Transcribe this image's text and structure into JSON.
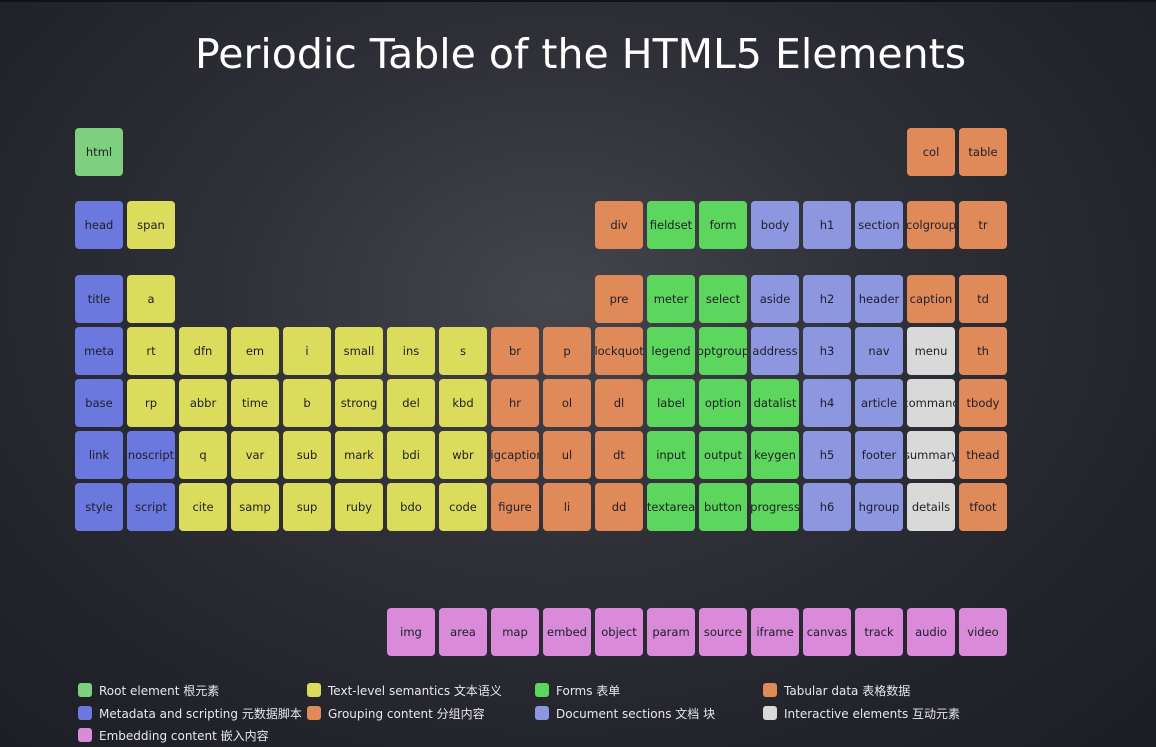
{
  "title": "Periodic Table of the HTML5 Elements",
  "colors": {
    "root": "#7ed07e",
    "meta": "#6b78dd",
    "text": "#dcdc5c",
    "group": "#e08a5a",
    "form": "#5cd65c",
    "section": "#8c97e0",
    "table": "#e08a5a",
    "interactive": "#d9d9d9",
    "embed": "#d98ad9"
  },
  "elements": [
    {
      "label": "html",
      "cat": "root"
    },
    {
      "label": "col",
      "cat": "table"
    },
    {
      "label": "table",
      "cat": "table"
    },
    {
      "label": "head",
      "cat": "meta"
    },
    {
      "label": "span",
      "cat": "text"
    },
    {
      "label": "div",
      "cat": "group"
    },
    {
      "label": "fieldset",
      "cat": "form"
    },
    {
      "label": "form",
      "cat": "form"
    },
    {
      "label": "body",
      "cat": "section"
    },
    {
      "label": "h1",
      "cat": "section"
    },
    {
      "label": "section",
      "cat": "section"
    },
    {
      "label": "colgroup",
      "cat": "table"
    },
    {
      "label": "tr",
      "cat": "table"
    },
    {
      "label": "title",
      "cat": "meta"
    },
    {
      "label": "a",
      "cat": "text"
    },
    {
      "label": "pre",
      "cat": "group"
    },
    {
      "label": "meter",
      "cat": "form"
    },
    {
      "label": "select",
      "cat": "form"
    },
    {
      "label": "aside",
      "cat": "section"
    },
    {
      "label": "h2",
      "cat": "section"
    },
    {
      "label": "header",
      "cat": "section"
    },
    {
      "label": "caption",
      "cat": "table"
    },
    {
      "label": "td",
      "cat": "table"
    },
    {
      "label": "meta",
      "cat": "meta"
    },
    {
      "label": "rt",
      "cat": "text"
    },
    {
      "label": "dfn",
      "cat": "text"
    },
    {
      "label": "em",
      "cat": "text"
    },
    {
      "label": "i",
      "cat": "text"
    },
    {
      "label": "small",
      "cat": "text"
    },
    {
      "label": "ins",
      "cat": "text"
    },
    {
      "label": "s",
      "cat": "text"
    },
    {
      "label": "br",
      "cat": "group"
    },
    {
      "label": "p",
      "cat": "group"
    },
    {
      "label": "blockquote",
      "cat": "group"
    },
    {
      "label": "legend",
      "cat": "form"
    },
    {
      "label": "optgroup",
      "cat": "form"
    },
    {
      "label": "address",
      "cat": "section"
    },
    {
      "label": "h3",
      "cat": "section"
    },
    {
      "label": "nav",
      "cat": "section"
    },
    {
      "label": "menu",
      "cat": "interactive"
    },
    {
      "label": "th",
      "cat": "table"
    },
    {
      "label": "base",
      "cat": "meta"
    },
    {
      "label": "rp",
      "cat": "text"
    },
    {
      "label": "abbr",
      "cat": "text"
    },
    {
      "label": "time",
      "cat": "text"
    },
    {
      "label": "b",
      "cat": "text"
    },
    {
      "label": "strong",
      "cat": "text"
    },
    {
      "label": "del",
      "cat": "text"
    },
    {
      "label": "kbd",
      "cat": "text"
    },
    {
      "label": "hr",
      "cat": "group"
    },
    {
      "label": "ol",
      "cat": "group"
    },
    {
      "label": "dl",
      "cat": "group"
    },
    {
      "label": "label",
      "cat": "form"
    },
    {
      "label": "option",
      "cat": "form"
    },
    {
      "label": "datalist",
      "cat": "form"
    },
    {
      "label": "h4",
      "cat": "section"
    },
    {
      "label": "article",
      "cat": "section"
    },
    {
      "label": "command",
      "cat": "interactive"
    },
    {
      "label": "tbody",
      "cat": "table"
    },
    {
      "label": "link",
      "cat": "meta"
    },
    {
      "label": "noscript",
      "cat": "meta"
    },
    {
      "label": "q",
      "cat": "text"
    },
    {
      "label": "var",
      "cat": "text"
    },
    {
      "label": "sub",
      "cat": "text"
    },
    {
      "label": "mark",
      "cat": "text"
    },
    {
      "label": "bdi",
      "cat": "text"
    },
    {
      "label": "wbr",
      "cat": "text"
    },
    {
      "label": "figcaption",
      "cat": "group"
    },
    {
      "label": "ul",
      "cat": "group"
    },
    {
      "label": "dt",
      "cat": "group"
    },
    {
      "label": "input",
      "cat": "form"
    },
    {
      "label": "output",
      "cat": "form"
    },
    {
      "label": "keygen",
      "cat": "form"
    },
    {
      "label": "h5",
      "cat": "section"
    },
    {
      "label": "footer",
      "cat": "section"
    },
    {
      "label": "summary",
      "cat": "interactive"
    },
    {
      "label": "thead",
      "cat": "table"
    },
    {
      "label": "style",
      "cat": "meta"
    },
    {
      "label": "script",
      "cat": "meta"
    },
    {
      "label": "cite",
      "cat": "text"
    },
    {
      "label": "samp",
      "cat": "text"
    },
    {
      "label": "sup",
      "cat": "text"
    },
    {
      "label": "ruby",
      "cat": "text"
    },
    {
      "label": "bdo",
      "cat": "text"
    },
    {
      "label": "code",
      "cat": "text"
    },
    {
      "label": "figure",
      "cat": "group"
    },
    {
      "label": "li",
      "cat": "group"
    },
    {
      "label": "dd",
      "cat": "group"
    },
    {
      "label": "textarea",
      "cat": "form"
    },
    {
      "label": "button",
      "cat": "form"
    },
    {
      "label": "progress",
      "cat": "form"
    },
    {
      "label": "h6",
      "cat": "section"
    },
    {
      "label": "hgroup",
      "cat": "section"
    },
    {
      "label": "details",
      "cat": "interactive"
    },
    {
      "label": "tfoot",
      "cat": "table"
    },
    {
      "label": "img",
      "cat": "embed"
    },
    {
      "label": "area",
      "cat": "embed"
    },
    {
      "label": "map",
      "cat": "embed"
    },
    {
      "label": "embed",
      "cat": "embed"
    },
    {
      "label": "object",
      "cat": "embed"
    },
    {
      "label": "param",
      "cat": "embed"
    },
    {
      "label": "source",
      "cat": "embed"
    },
    {
      "label": "iframe",
      "cat": "embed"
    },
    {
      "label": "canvas",
      "cat": "embed"
    },
    {
      "label": "track",
      "cat": "embed"
    },
    {
      "label": "audio",
      "cat": "embed"
    },
    {
      "label": "video",
      "cat": "embed"
    }
  ],
  "legend": [
    {
      "label": "Root element 根元素",
      "cat": "root"
    },
    {
      "label": "Text-level semantics 文本语义",
      "cat": "text"
    },
    {
      "label": "Forms 表单",
      "cat": "form"
    },
    {
      "label": "Tabular data 表格数据",
      "cat": "table"
    },
    {
      "label": "Metadata and scripting 元数据脚本",
      "cat": "meta"
    },
    {
      "label": "Grouping content 分组内容",
      "cat": "group"
    },
    {
      "label": "Document sections 文档 块",
      "cat": "section"
    },
    {
      "label": "Interactive elements 互动元素",
      "cat": "interactive"
    },
    {
      "label": "Embedding content 嵌入内容",
      "cat": "embed"
    }
  ]
}
